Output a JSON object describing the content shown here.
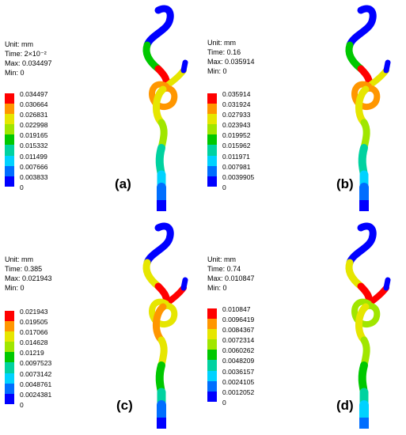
{
  "colormap": [
    "#0000ff",
    "#006eff",
    "#00d2ff",
    "#00d2a0",
    "#00c800",
    "#a0e600",
    "#e6e600",
    "#ff9600",
    "#ff0000"
  ],
  "panels": [
    {
      "label": "(a)",
      "unit": "Unit: mm",
      "time": "Time: 2×10⁻²",
      "max": "Max: 0.034497",
      "min": "Min: 0",
      "ticks": [
        "0.034497",
        "0.030664",
        "0.026831",
        "0.022998",
        "0.019165",
        "0.015332",
        "0.011499",
        "0.007666",
        "0.003833",
        "0"
      ]
    },
    {
      "label": "(b)",
      "unit": "Unit: mm",
      "time": "Time: 0.16",
      "max": "Max: 0.035914",
      "min": "Min: 0",
      "ticks": [
        "0.035914",
        "0.031924",
        "0.027933",
        "0.023943",
        "0.019952",
        "0.015962",
        "0.011971",
        "0.007981",
        "0.0039905",
        "0"
      ]
    },
    {
      "label": "(c)",
      "unit": "Unit: mm",
      "time": "Time: 0.385",
      "max": "Max: 0.021943",
      "min": "Min: 0",
      "ticks": [
        "0.021943",
        "0.019505",
        "0.017066",
        "0.014628",
        "0.01219",
        "0.0097523",
        "0.0073142",
        "0.0048761",
        "0.0024381",
        "0"
      ]
    },
    {
      "label": "(d)",
      "unit": "Unit: mm",
      "time": "Time: 0.74",
      "max": "Max: 0.010847",
      "min": "Min: 0",
      "ticks": [
        "0.010847",
        "0.0096419",
        "0.0084367",
        "0.0072314",
        "0.0060262",
        "0.0048209",
        "0.0036157",
        "0.0024105",
        "0.0012052",
        "0"
      ]
    }
  ]
}
